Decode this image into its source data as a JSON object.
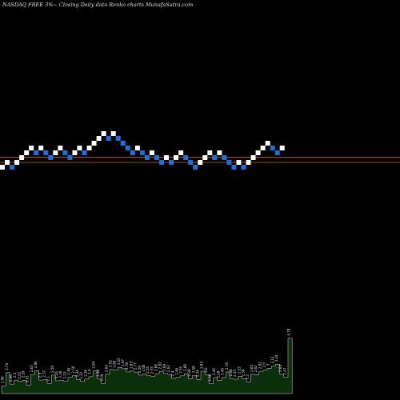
{
  "chart_data": {
    "type": "renko",
    "title": "NASDAQ FREE 3%~  Closing Daily data  Renko  charts MunafaSutra.com",
    "colors": {
      "background": "#000000",
      "up_brick": "#ffffff",
      "down_brick": "#1e6fd9",
      "price_line": "#d2691e",
      "volume_fill": "#0b2e0b",
      "volume_stroke": "#d6d6d6"
    },
    "bricks": [
      {
        "level": 0,
        "dir": "up"
      },
      {
        "level": 1,
        "dir": "up"
      },
      {
        "level": 0,
        "dir": "down"
      },
      {
        "level": 1,
        "dir": "up"
      },
      {
        "level": 2,
        "dir": "up"
      },
      {
        "level": 3,
        "dir": "up"
      },
      {
        "level": 4,
        "dir": "up"
      },
      {
        "level": 3,
        "dir": "down"
      },
      {
        "level": 4,
        "dir": "up"
      },
      {
        "level": 3,
        "dir": "down"
      },
      {
        "level": 2,
        "dir": "down"
      },
      {
        "level": 3,
        "dir": "up"
      },
      {
        "level": 4,
        "dir": "up"
      },
      {
        "level": 3,
        "dir": "down"
      },
      {
        "level": 2,
        "dir": "down"
      },
      {
        "level": 3,
        "dir": "up"
      },
      {
        "level": 4,
        "dir": "up"
      },
      {
        "level": 3,
        "dir": "down"
      },
      {
        "level": 4,
        "dir": "up"
      },
      {
        "level": 5,
        "dir": "up"
      },
      {
        "level": 6,
        "dir": "up"
      },
      {
        "level": 7,
        "dir": "up"
      },
      {
        "level": 6,
        "dir": "down"
      },
      {
        "level": 7,
        "dir": "up"
      },
      {
        "level": 6,
        "dir": "down"
      },
      {
        "level": 5,
        "dir": "down"
      },
      {
        "level": 4,
        "dir": "down"
      },
      {
        "level": 3,
        "dir": "down"
      },
      {
        "level": 4,
        "dir": "up"
      },
      {
        "level": 3,
        "dir": "down"
      },
      {
        "level": 2,
        "dir": "down"
      },
      {
        "level": 3,
        "dir": "up"
      },
      {
        "level": 2,
        "dir": "down"
      },
      {
        "level": 1,
        "dir": "down"
      },
      {
        "level": 2,
        "dir": "up"
      },
      {
        "level": 1,
        "dir": "down"
      },
      {
        "level": 2,
        "dir": "up"
      },
      {
        "level": 3,
        "dir": "up"
      },
      {
        "level": 2,
        "dir": "down"
      },
      {
        "level": 1,
        "dir": "down"
      },
      {
        "level": 0,
        "dir": "down"
      },
      {
        "level": 1,
        "dir": "up"
      },
      {
        "level": 2,
        "dir": "up"
      },
      {
        "level": 3,
        "dir": "up"
      },
      {
        "level": 2,
        "dir": "down"
      },
      {
        "level": 3,
        "dir": "up"
      },
      {
        "level": 2,
        "dir": "down"
      },
      {
        "level": 1,
        "dir": "down"
      },
      {
        "level": 0,
        "dir": "down"
      },
      {
        "level": 1,
        "dir": "up"
      },
      {
        "level": 0,
        "dir": "down"
      },
      {
        "level": 1,
        "dir": "up"
      },
      {
        "level": 2,
        "dir": "up"
      },
      {
        "level": 3,
        "dir": "up"
      },
      {
        "level": 4,
        "dir": "up"
      },
      {
        "level": 5,
        "dir": "up"
      },
      {
        "level": 4,
        "dir": "down"
      },
      {
        "level": 3,
        "dir": "down"
      },
      {
        "level": 4,
        "dir": "up"
      }
    ],
    "price_lines": [
      2.55,
      1.5
    ],
    "volume_labels": [
      "1.96",
      "2.74",
      "2.06",
      "2.3",
      "2.22",
      "2.29",
      "2.01",
      "2.63",
      "2.86",
      "2.3",
      "2.32",
      "2.1",
      "2.59",
      "2.26",
      "2.28",
      "2.23",
      "2.46",
      "2.56",
      "2.34",
      "2.22",
      "2.36",
      "2.5",
      "2.84",
      "2.36",
      "2.09",
      "2.64",
      "2.92",
      "2.89",
      "3.05",
      "2.97",
      "2.78",
      "2.83",
      "2.77",
      "2.59",
      "2.66",
      "2.55",
      "2.53",
      "2.68",
      "2.82",
      "2.69",
      "2.63",
      "2.4",
      "2.46",
      "2.55",
      "2.68",
      "2.38",
      "2.58",
      "2.34",
      "2.83",
      "2.6",
      "2.08",
      "2.45",
      "2.28",
      "2.45",
      "2.78",
      "2.38",
      "2.35",
      "2.53",
      "2.38",
      "2.2",
      "2.64",
      "2.62",
      "2.82",
      "2.9",
      "3",
      "3.13",
      "3.24",
      "2.64",
      "2.47",
      "4.78"
    ],
    "volume_values": [
      1.96,
      2.74,
      2.06,
      2.3,
      2.22,
      2.29,
      2.01,
      2.63,
      2.86,
      2.3,
      2.32,
      2.1,
      2.59,
      2.26,
      2.28,
      2.23,
      2.46,
      2.56,
      2.34,
      2.22,
      2.36,
      2.5,
      2.84,
      2.36,
      2.09,
      2.64,
      2.92,
      2.89,
      3.05,
      2.97,
      2.78,
      2.83,
      2.77,
      2.59,
      2.66,
      2.55,
      2.53,
      2.68,
      2.82,
      2.69,
      2.63,
      2.4,
      2.46,
      2.55,
      2.68,
      2.38,
      2.58,
      2.34,
      2.83,
      2.6,
      2.08,
      2.45,
      2.28,
      2.45,
      2.78,
      2.38,
      2.35,
      2.53,
      2.38,
      2.2,
      2.64,
      2.62,
      2.82,
      2.9,
      3,
      3.13,
      3.24,
      2.64,
      2.47,
      4.78
    ]
  }
}
